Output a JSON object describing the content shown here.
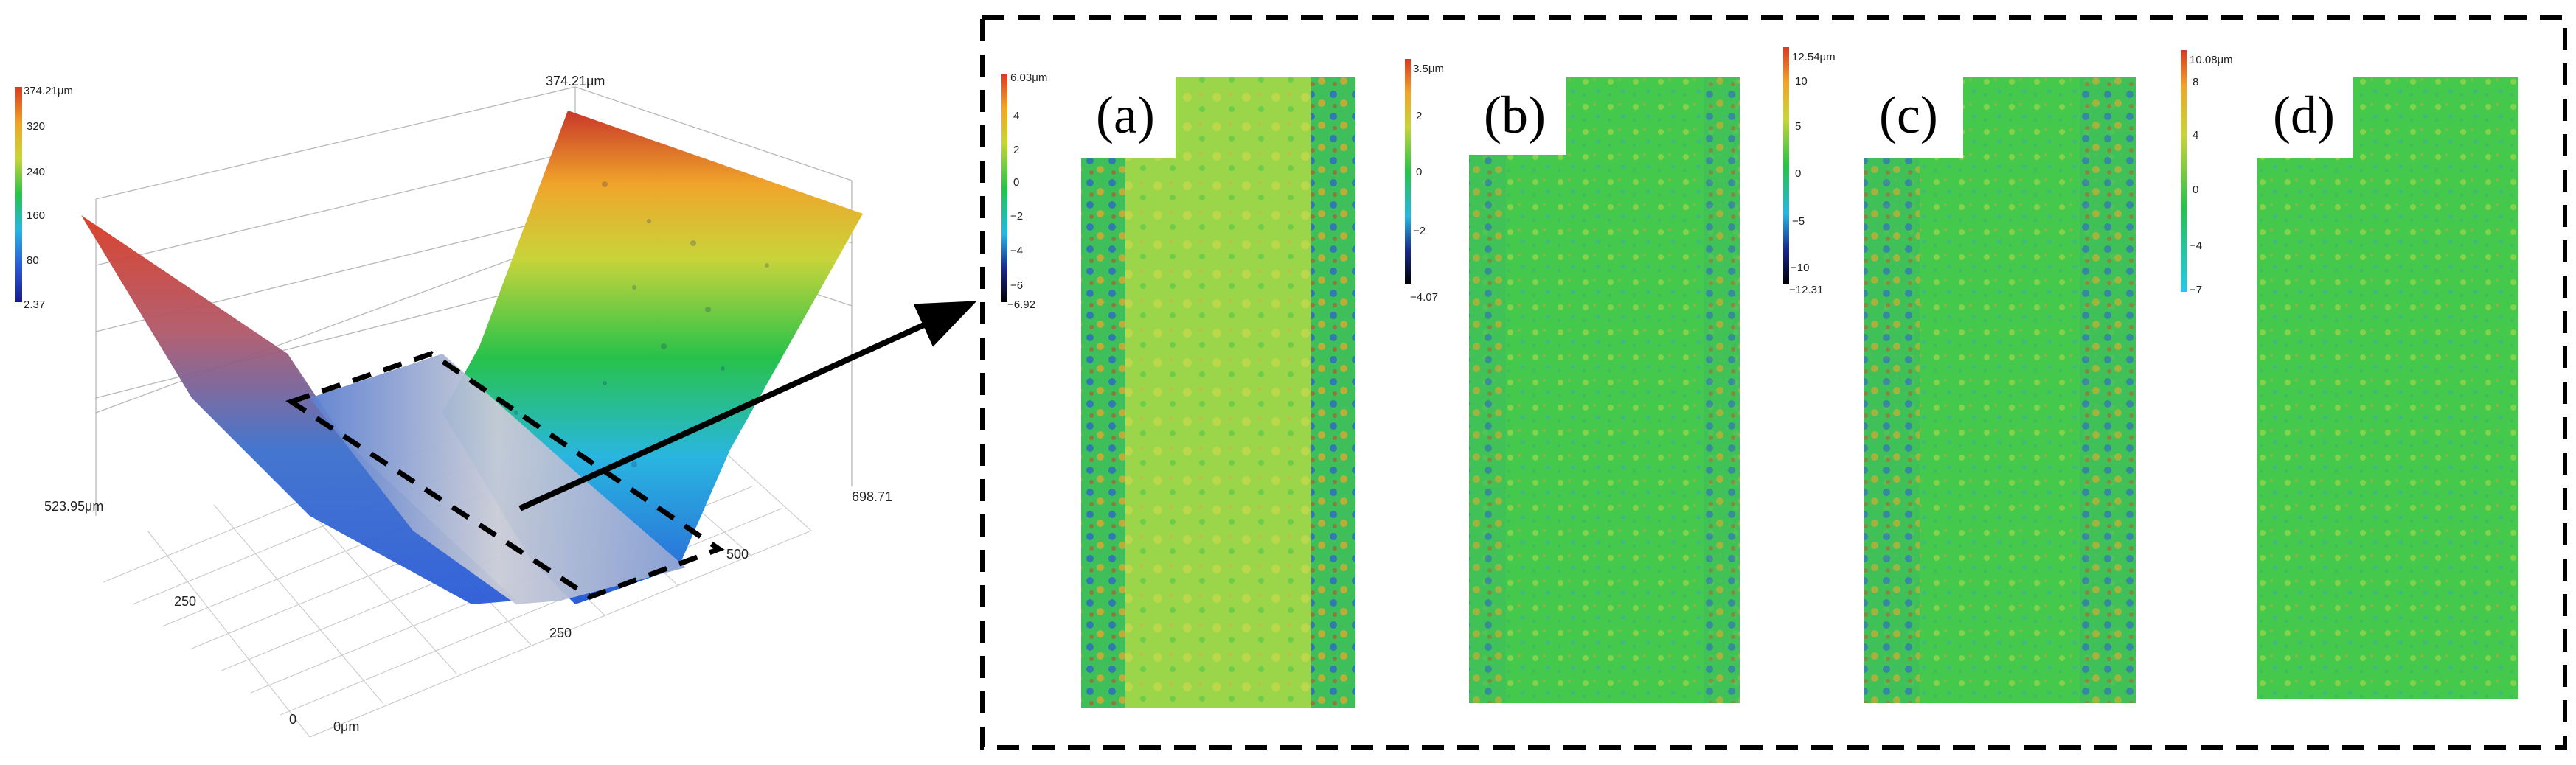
{
  "overview_3d": {
    "colorbar": {
      "max_label": "374.21μm",
      "ticks": [
        "320",
        "240",
        "160",
        "80"
      ],
      "min_label": "2.37"
    },
    "axes": {
      "top_label": "374.21μm",
      "left_label": "523.95μm",
      "right_label": "698.71",
      "x_ticks": [
        "250",
        "500"
      ],
      "y_ticks": [
        "250",
        "0"
      ],
      "origin_label": "0μm"
    }
  },
  "panels": [
    {
      "letter": "(a)",
      "colorbar": {
        "max": "6.03μm",
        "ticks": [
          "4",
          "2",
          "0",
          "−2",
          "−4",
          "−6"
        ],
        "min": "−6.92"
      }
    },
    {
      "letter": "(b)",
      "colorbar": {
        "max": "3.5μm",
        "ticks": [
          "2",
          "0",
          "−2"
        ],
        "min": "−4.07"
      }
    },
    {
      "letter": "(c)",
      "colorbar": {
        "max": "12.54μm",
        "ticks": [
          "10",
          "5",
          "0",
          "−5",
          "−10"
        ],
        "min": "−12.31"
      }
    },
    {
      "letter": "(d)",
      "colorbar": {
        "max": "10.08μm",
        "ticks": [
          "8",
          "4",
          "0",
          "−4"
        ],
        "min": "−7"
      }
    }
  ],
  "colors": {
    "colormap": [
      "#1a1a8c",
      "#2a5bd7",
      "#29b6e0",
      "#27c24a",
      "#c8d43a",
      "#f0a52a",
      "#d83a22"
    ],
    "surface_green": "#3fcf4a",
    "surface_yellowgreen": "#a6d84a",
    "dashed_box": "#000000"
  }
}
